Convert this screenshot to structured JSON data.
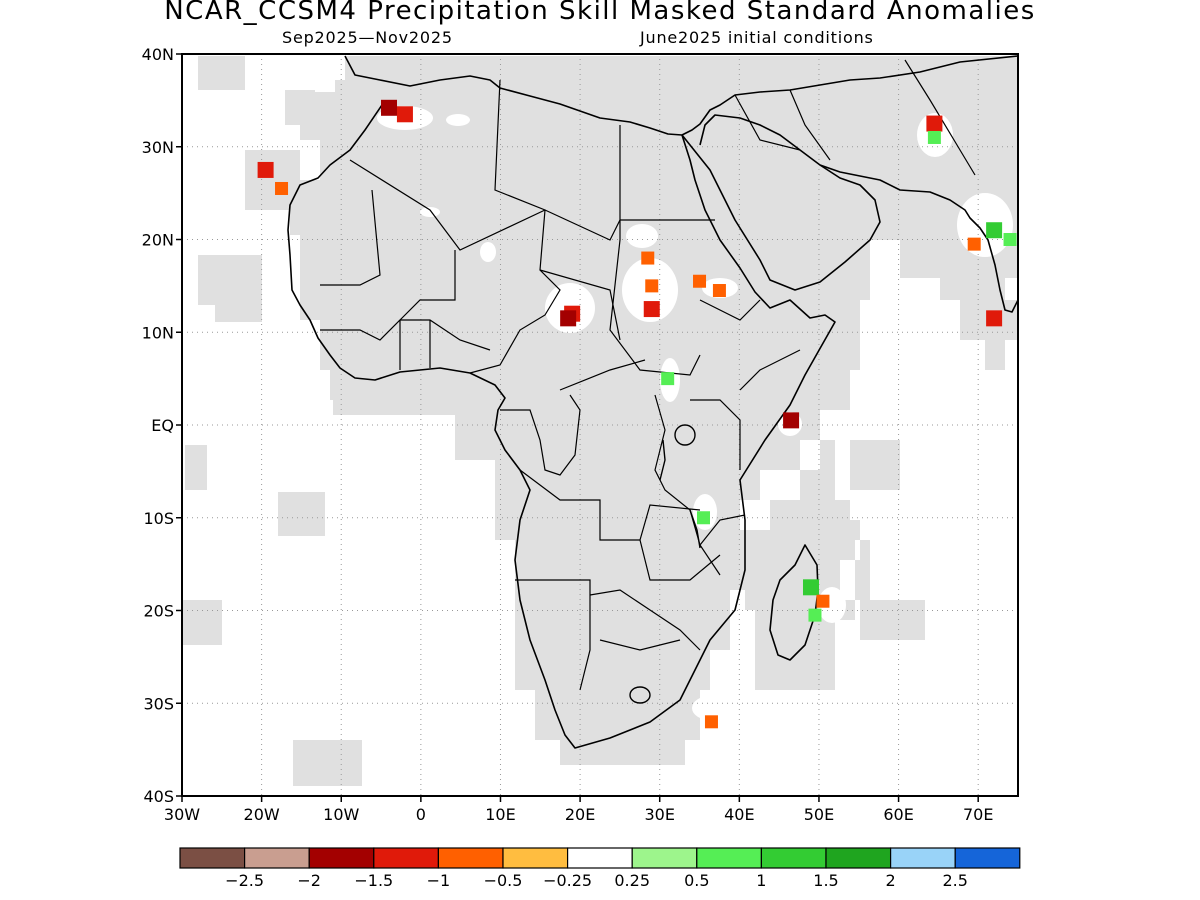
{
  "title": "NCAR_CCSM4 Precipitation Skill Masked Standard Anomalies",
  "subtitle_left": "Sep2025—Nov2025",
  "subtitle_right": "June2025 initial conditions",
  "map": {
    "lon_range": [
      -30,
      75
    ],
    "lat_range": [
      -40,
      40
    ],
    "grid_style": "dotted",
    "land_color": "#000000",
    "skill_mask_color": "#e0e0e0",
    "lat_ticks": [
      {
        "lat": 40,
        "label": "40N"
      },
      {
        "lat": 30,
        "label": "30N"
      },
      {
        "lat": 20,
        "label": "20N"
      },
      {
        "lat": 10,
        "label": "10N"
      },
      {
        "lat": 0,
        "label": "EQ"
      },
      {
        "lat": -10,
        "label": "10S"
      },
      {
        "lat": -20,
        "label": "20S"
      },
      {
        "lat": -30,
        "label": "30S"
      },
      {
        "lat": -40,
        "label": "40S"
      }
    ],
    "lon_ticks": [
      {
        "lon": -30,
        "label": "30W"
      },
      {
        "lon": -20,
        "label": "20W"
      },
      {
        "lon": -10,
        "label": "10W"
      },
      {
        "lon": 0,
        "label": "0"
      },
      {
        "lon": 10,
        "label": "10E"
      },
      {
        "lon": 20,
        "label": "20E"
      },
      {
        "lon": 30,
        "label": "30E"
      },
      {
        "lon": 40,
        "label": "40E"
      },
      {
        "lon": 50,
        "label": "50E"
      },
      {
        "lon": 60,
        "label": "60E"
      },
      {
        "lon": 70,
        "label": "70E"
      }
    ],
    "anomaly_patches": [
      {
        "lon": -2,
        "lat": 33.5,
        "value": -1.0
      },
      {
        "lon": -4,
        "lat": 34.2,
        "value": -1.5
      },
      {
        "lon": -19.5,
        "lat": 27.5,
        "value": -1.0
      },
      {
        "lon": -17.5,
        "lat": 25.5,
        "value": -0.5
      },
      {
        "lon": 19,
        "lat": 12,
        "value": -1.0
      },
      {
        "lon": 18.5,
        "lat": 11.5,
        "value": -1.5
      },
      {
        "lon": 29,
        "lat": 12.5,
        "value": -1.0
      },
      {
        "lon": 29,
        "lat": 15,
        "value": -0.5
      },
      {
        "lon": 28.5,
        "lat": 18,
        "value": -0.5
      },
      {
        "lon": 37.5,
        "lat": 14.5,
        "value": -0.5
      },
      {
        "lon": 35,
        "lat": 15.5,
        "value": -0.5
      },
      {
        "lon": 31,
        "lat": 5,
        "value": 0.75
      },
      {
        "lon": 35.5,
        "lat": -10,
        "value": 0.75
      },
      {
        "lon": 46.5,
        "lat": 0.5,
        "value": -1.5
      },
      {
        "lon": 49,
        "lat": -17.5,
        "value": 1.25
      },
      {
        "lon": 50.5,
        "lat": -19,
        "value": -0.5
      },
      {
        "lon": 49.5,
        "lat": -20.5,
        "value": 0.75
      },
      {
        "lon": 36.5,
        "lat": -32,
        "value": -0.5
      },
      {
        "lon": 64.5,
        "lat": 32.5,
        "value": -1.0
      },
      {
        "lon": 64.5,
        "lat": 31,
        "value": 0.75
      },
      {
        "lon": 72,
        "lat": 21,
        "value": 1.25
      },
      {
        "lon": 74,
        "lat": 20,
        "value": 0.75
      },
      {
        "lon": 69.5,
        "lat": 19.5,
        "value": -0.5
      },
      {
        "lon": 72,
        "lat": 11.5,
        "value": -1.0
      }
    ]
  },
  "legend": {
    "colors": [
      "#7b4f44",
      "#c99e90",
      "#a30000",
      "#e01a0a",
      "#ff6000",
      "#ffbd40",
      "#ffffff",
      "#9df58c",
      "#55ee55",
      "#33cc33",
      "#1fa51f",
      "#99d3f8",
      "#1565d9"
    ],
    "labels": [
      "−2.5",
      "−2",
      "−1.5",
      "−1",
      "−0.5",
      "−0.25",
      "0.25",
      "0.5",
      "1",
      "1.5",
      "2",
      "2.5"
    ]
  }
}
